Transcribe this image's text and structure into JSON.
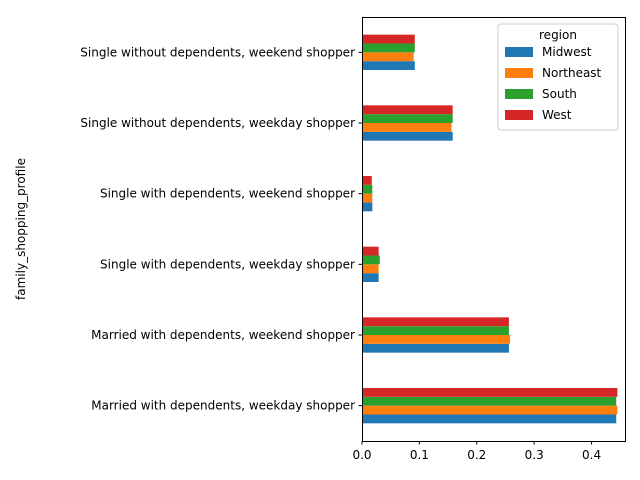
{
  "chart_data": {
    "type": "bar",
    "orientation": "horizontal",
    "title": "",
    "xlabel": "",
    "ylabel": "family_shopping_profile",
    "categories": [
      "Married with dependents, weekday shopper",
      "Married with dependents, weekend shopper",
      "Single with dependents, weekday shopper",
      "Single with dependents, weekend shopper",
      "Single without dependents, weekday shopper",
      "Single without dependents, weekend shopper"
    ],
    "xlim": [
      0,
      0.46
    ],
    "xticks": [
      "0.0",
      "0.1",
      "0.2",
      "0.3",
      "0.4"
    ],
    "grid": false,
    "legend": {
      "title": "region",
      "placement": "top-right"
    },
    "series": [
      {
        "name": "Midwest",
        "color": "#1f77b4",
        "values": [
          0.443,
          0.256,
          0.029,
          0.018,
          0.158,
          0.092
        ]
      },
      {
        "name": "Northeast",
        "color": "#ff7f0e",
        "values": [
          0.445,
          0.258,
          0.029,
          0.018,
          0.156,
          0.09
        ]
      },
      {
        "name": "South",
        "color": "#2ca02c",
        "values": [
          0.443,
          0.256,
          0.031,
          0.018,
          0.158,
          0.092
        ]
      },
      {
        "name": "West",
        "color": "#d62728",
        "values": [
          0.445,
          0.256,
          0.029,
          0.017,
          0.158,
          0.092
        ]
      }
    ]
  }
}
